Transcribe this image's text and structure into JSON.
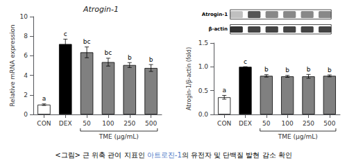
{
  "caption": "<그림> 근 위축 관여 지표인 아트로진-1의 유전자 및 단백질 발현 감소 확인",
  "caption_highlight": "아트로진-1",
  "caption_color": "#4472c4",
  "chart_data": [
    {
      "type": "bar",
      "title": "Atrogin-1",
      "ylabel": "Relative mRNA expression",
      "xlabel": "TME (μg/mL)",
      "bracket_categories": [
        "50",
        "100",
        "250",
        "500"
      ],
      "categories": [
        "CON",
        "DEX",
        "50",
        "100",
        "250",
        "500"
      ],
      "values": [
        1.0,
        7.2,
        6.35,
        5.35,
        5.05,
        4.75
      ],
      "errors": [
        0.08,
        0.5,
        0.55,
        0.4,
        0.25,
        0.35
      ],
      "significance": [
        "a",
        "c",
        "bc",
        "bc",
        "b",
        "b"
      ],
      "colors": [
        "white",
        "black",
        "#808080",
        "#808080",
        "#808080",
        "#808080"
      ],
      "ylim": [
        0,
        10
      ],
      "yticks": [
        0,
        2,
        4,
        6,
        8,
        10
      ],
      "grid": false
    },
    {
      "type": "bar",
      "blot_labels": [
        "Atrogin-1",
        "β-actin"
      ],
      "ylabel": "Atrogin-1/β-actin (fold)",
      "xlabel": "TME (μg/mL)",
      "bracket_categories": [
        "50",
        "100",
        "250",
        "500"
      ],
      "categories": [
        "CON",
        "DEX",
        "50",
        "100",
        "250",
        "500"
      ],
      "values": [
        0.36,
        1.0,
        0.81,
        0.8,
        0.8,
        0.81
      ],
      "errors": [
        0.04,
        0.0,
        0.025,
        0.02,
        0.04,
        0.02
      ],
      "significance": [
        "a",
        "c",
        "b",
        "b",
        "b",
        "b"
      ],
      "colors": [
        "white",
        "black",
        "#808080",
        "#808080",
        "#808080",
        "#808080"
      ],
      "ylim": [
        0,
        1.5
      ],
      "yticks": [
        {
          "value": 0.0,
          "label": "0.0"
        },
        0.5,
        {
          "value": 1.0,
          "label": "1.0"
        },
        1.5
      ],
      "grid": false
    }
  ]
}
